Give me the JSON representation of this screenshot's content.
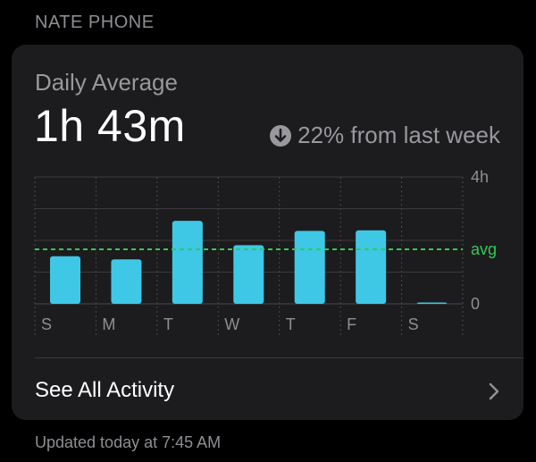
{
  "section": {
    "title": "NATE PHONE"
  },
  "summary": {
    "label": "Daily Average",
    "value": "1h 43m",
    "change_text": "22% from last week",
    "change_icon": "arrow-down-circle-icon"
  },
  "chart_data": {
    "type": "bar",
    "categories": [
      "S",
      "M",
      "T",
      "W",
      "T",
      "F",
      "S"
    ],
    "values": [
      90,
      84,
      157,
      111,
      138,
      139,
      2
    ],
    "units": "minutes",
    "ylim": [
      0,
      240
    ],
    "y_ticks": [
      {
        "label": "4h",
        "value": 240
      },
      {
        "label": "0",
        "value": 0
      }
    ],
    "average": {
      "label": "avg",
      "value": 103
    },
    "bar_color": "#3ec8e6",
    "avg_color": "#34c759",
    "grid": true
  },
  "footer": {
    "see_all_label": "See All Activity",
    "chevron_icon": "chevron-right-icon"
  },
  "updated_text": "Updated today at 7:45 AM"
}
